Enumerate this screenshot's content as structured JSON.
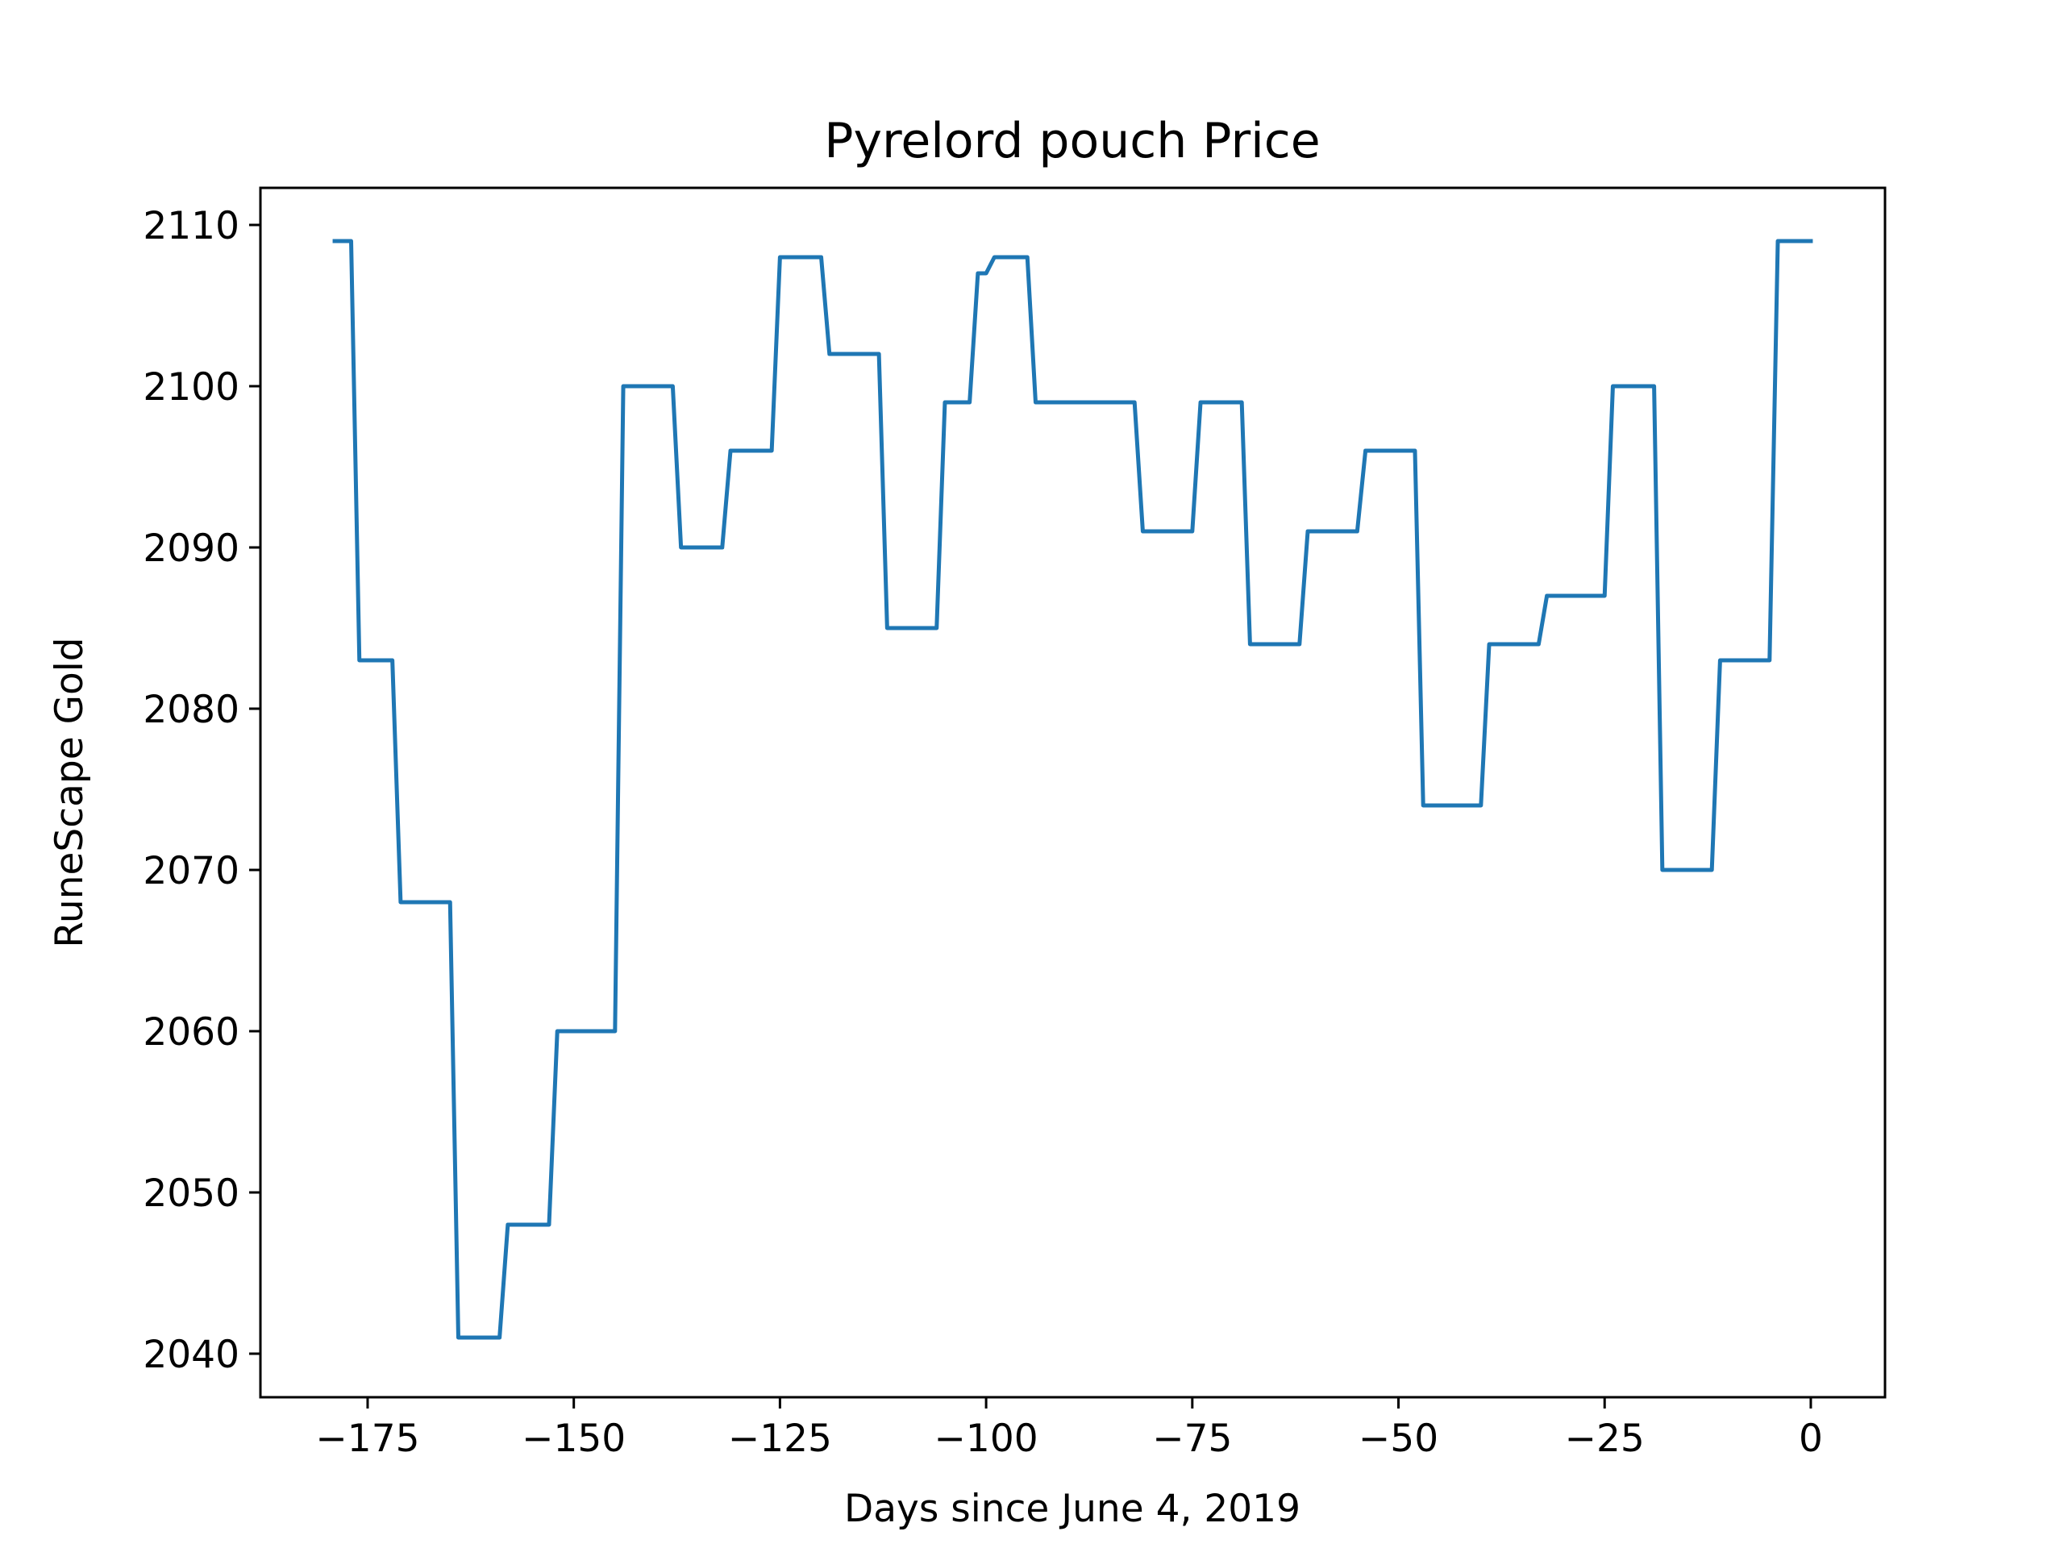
{
  "chart_data": {
    "type": "line",
    "title": "Pyrelord pouch Price",
    "xlabel": "Days since June 4, 2019",
    "ylabel": "RuneScape Gold",
    "xlim": [
      -188,
      9
    ],
    "ylim": [
      2037.3,
      2112.3
    ],
    "xticks": [
      -175,
      -150,
      -125,
      -100,
      -75,
      -50,
      -25,
      0
    ],
    "xtick_labels": [
      "−175",
      "−150",
      "−125",
      "−100",
      "−75",
      "−50",
      "−25",
      "0"
    ],
    "yticks": [
      2040,
      2050,
      2060,
      2070,
      2080,
      2090,
      2100,
      2110
    ],
    "ytick_labels": [
      "2040",
      "2050",
      "2060",
      "2070",
      "2080",
      "2090",
      "2100",
      "2110"
    ],
    "grid": false,
    "series": [
      {
        "color": "#1f77b4",
        "x": [
          -179,
          -177,
          -176,
          -172,
          -171,
          -165,
          -164,
          -159,
          -158,
          -153,
          -152,
          -145,
          -144,
          -138,
          -137,
          -132,
          -131,
          -126,
          -125,
          -120,
          -119,
          -113,
          -112,
          -106,
          -105,
          -102,
          -101,
          -100,
          -99,
          -95,
          -94,
          -82,
          -81,
          -75,
          -74,
          -69,
          -68,
          -62,
          -61,
          -55,
          -54,
          -48,
          -47,
          -40,
          -39,
          -33,
          -32,
          -25,
          -24,
          -19,
          -18,
          -12,
          -11,
          -5,
          -4,
          0
        ],
        "y": [
          2109,
          2109,
          2083,
          2083,
          2068,
          2068,
          2041,
          2041,
          2048,
          2048,
          2060,
          2060,
          2100,
          2100,
          2090,
          2090,
          2096,
          2096,
          2108,
          2108,
          2102,
          2102,
          2085,
          2085,
          2099,
          2099,
          2107,
          2107,
          2108,
          2108,
          2099,
          2099,
          2091,
          2091,
          2099,
          2099,
          2084,
          2084,
          2091,
          2091,
          2096,
          2096,
          2074,
          2074,
          2084,
          2084,
          2087,
          2087,
          2100,
          2100,
          2070,
          2070,
          2083,
          2083,
          2109,
          2109
        ]
      }
    ]
  }
}
